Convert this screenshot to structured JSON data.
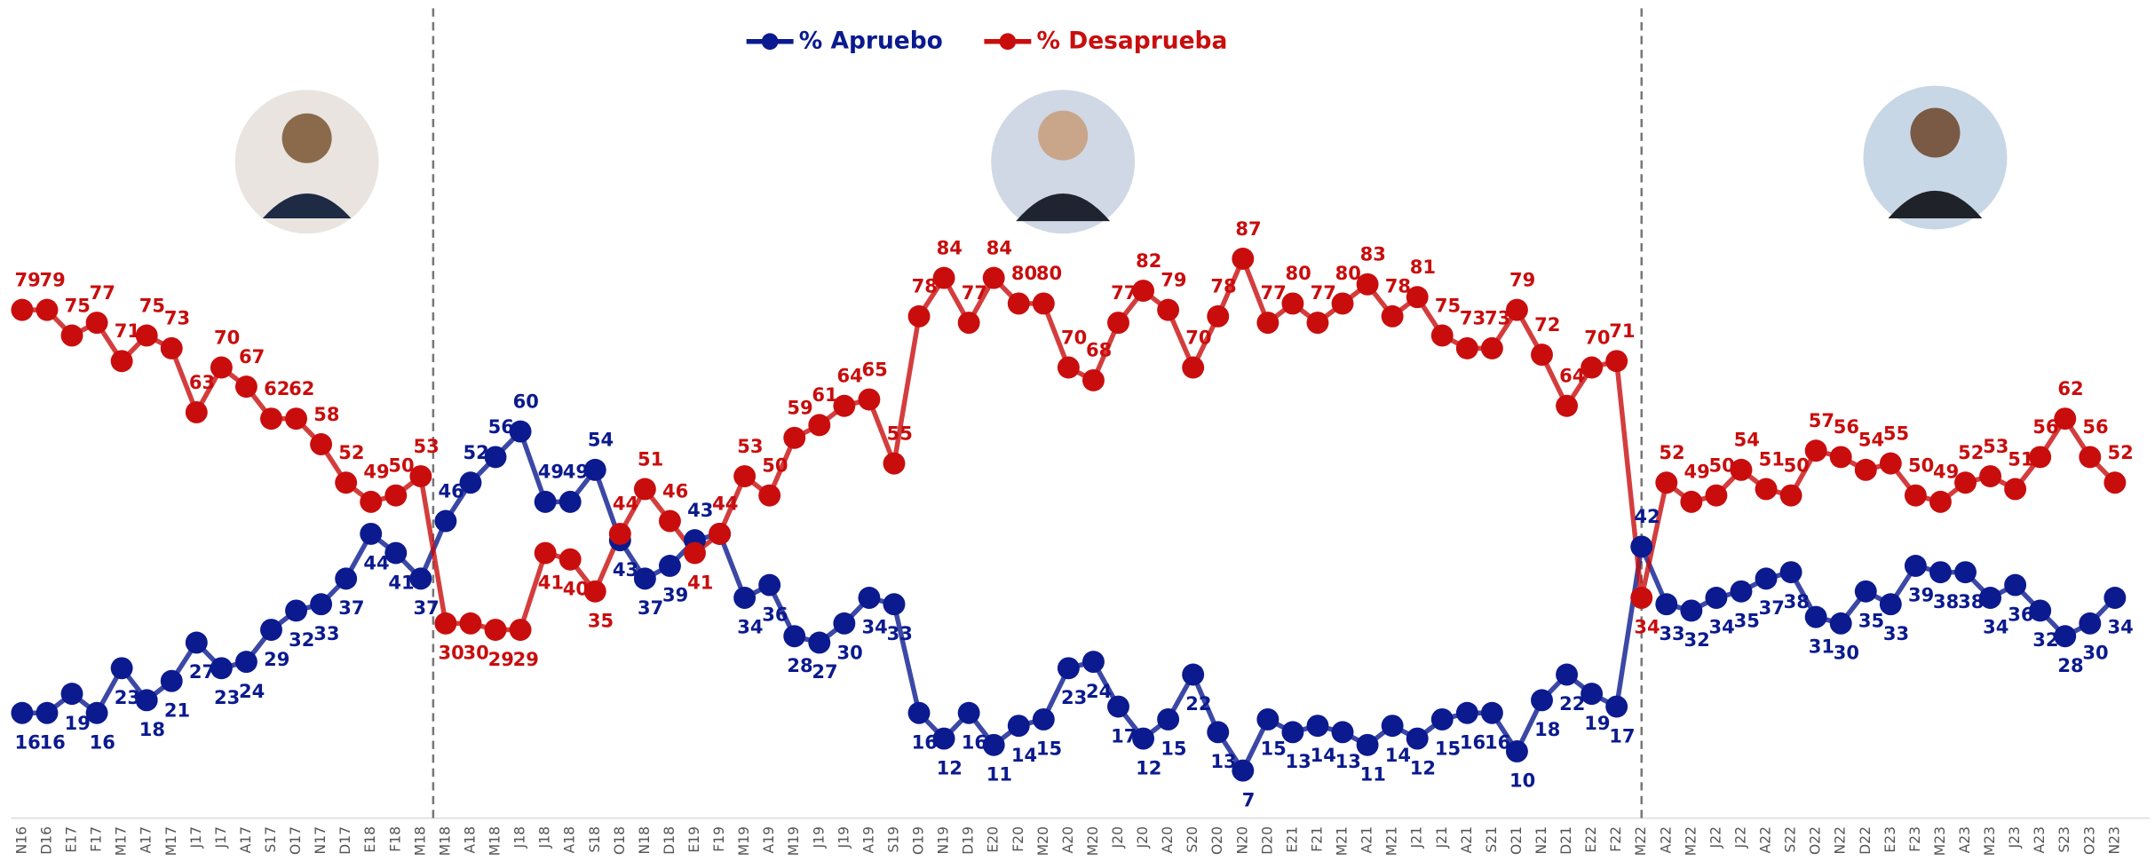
{
  "chart_data": {
    "type": "line",
    "categories": [
      "N16",
      "D16",
      "E17",
      "F17",
      "M17",
      "A17",
      "M17",
      "J17",
      "J17",
      "A17",
      "S17",
      "O17",
      "N17",
      "D17",
      "E18",
      "F18",
      "M18",
      "M18",
      "A18",
      "M18",
      "J18",
      "J18",
      "A18",
      "S18",
      "O18",
      "N18",
      "D18",
      "E19",
      "F19",
      "M19",
      "A19",
      "M19",
      "J19",
      "J19",
      "A19",
      "S19",
      "O19",
      "N19",
      "D19",
      "E20",
      "F20",
      "M20",
      "A20",
      "M20",
      "J20",
      "J20",
      "A20",
      "S20",
      "O20",
      "N20",
      "D20",
      "E21",
      "F21",
      "M21",
      "A21",
      "M21",
      "J21",
      "J21",
      "A21",
      "S21",
      "O21",
      "N21",
      "D21",
      "E22",
      "F22",
      "M22",
      "A22",
      "M22",
      "J22",
      "J22",
      "A22",
      "S22",
      "O22",
      "N22",
      "D22",
      "E23",
      "F23",
      "M23",
      "A23",
      "M23",
      "J23",
      "A23",
      "S23",
      "O23",
      "N23"
    ],
    "series": [
      {
        "name": "% Apruebo",
        "color": "#0b1a8e",
        "values": [
          16,
          16,
          19,
          16,
          23,
          18,
          21,
          27,
          23,
          24,
          29,
          32,
          33,
          37,
          44,
          41,
          37,
          46,
          52,
          56,
          60,
          49,
          49,
          54,
          43,
          37,
          39,
          43,
          44,
          34,
          36,
          28,
          27,
          30,
          34,
          33,
          16,
          12,
          16,
          11,
          14,
          15,
          23,
          24,
          17,
          12,
          15,
          22,
          13,
          7,
          15,
          13,
          14,
          13,
          11,
          14,
          12,
          15,
          16,
          16,
          10,
          18,
          22,
          19,
          17,
          42,
          33,
          32,
          34,
          35,
          37,
          38,
          31,
          30,
          35,
          33,
          39,
          38,
          38,
          34,
          36,
          32,
          28,
          30,
          34
        ]
      },
      {
        "name": "% Desaprueba",
        "color": "#c90d0d",
        "values": [
          79,
          79,
          75,
          77,
          71,
          75,
          73,
          63,
          70,
          67,
          62,
          62,
          58,
          52,
          49,
          50,
          53,
          30,
          30,
          29,
          29,
          41,
          40,
          35,
          44,
          51,
          46,
          41,
          44,
          53,
          50,
          59,
          61,
          64,
          65,
          55,
          78,
          84,
          77,
          84,
          80,
          80,
          70,
          68,
          77,
          82,
          79,
          70,
          78,
          87,
          77,
          80,
          77,
          80,
          83,
          78,
          81,
          75,
          73,
          73,
          79,
          72,
          64,
          70,
          71,
          34,
          52,
          49,
          50,
          54,
          51,
          50,
          57,
          56,
          54,
          55,
          50,
          49,
          52,
          53,
          51,
          56,
          62,
          56,
          52
        ]
      }
    ],
    "ylim": [
      0,
      100
    ]
  }
}
